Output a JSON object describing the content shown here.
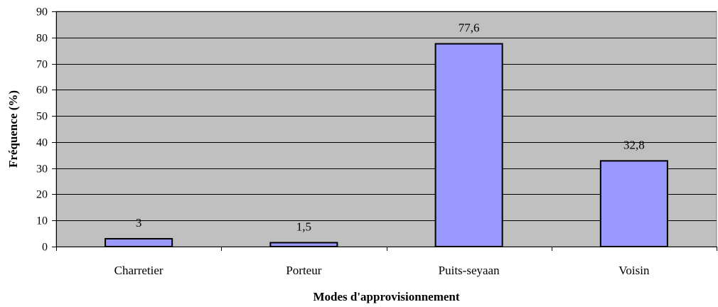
{
  "chart_data": {
    "type": "bar",
    "categories": [
      "Charretier",
      "Porteur",
      "Puits-seyaan",
      "Voisin"
    ],
    "values": [
      3,
      1.5,
      77.6,
      32.8
    ],
    "data_labels": [
      "3",
      "1,5",
      "77,6",
      "32,8"
    ],
    "title": "",
    "xlabel": "Modes d'approvisionnement",
    "ylabel": "Fréquence (%)",
    "ylim": [
      0,
      90
    ],
    "yticks": [
      0,
      10,
      20,
      30,
      40,
      50,
      60,
      70,
      80,
      90
    ],
    "grid": true,
    "legend": "none",
    "colors": {
      "bar_fill": "#9999ff",
      "bar_stroke": "#000000",
      "plot_background": "#c0c0c0",
      "gridline": "#000000"
    }
  }
}
